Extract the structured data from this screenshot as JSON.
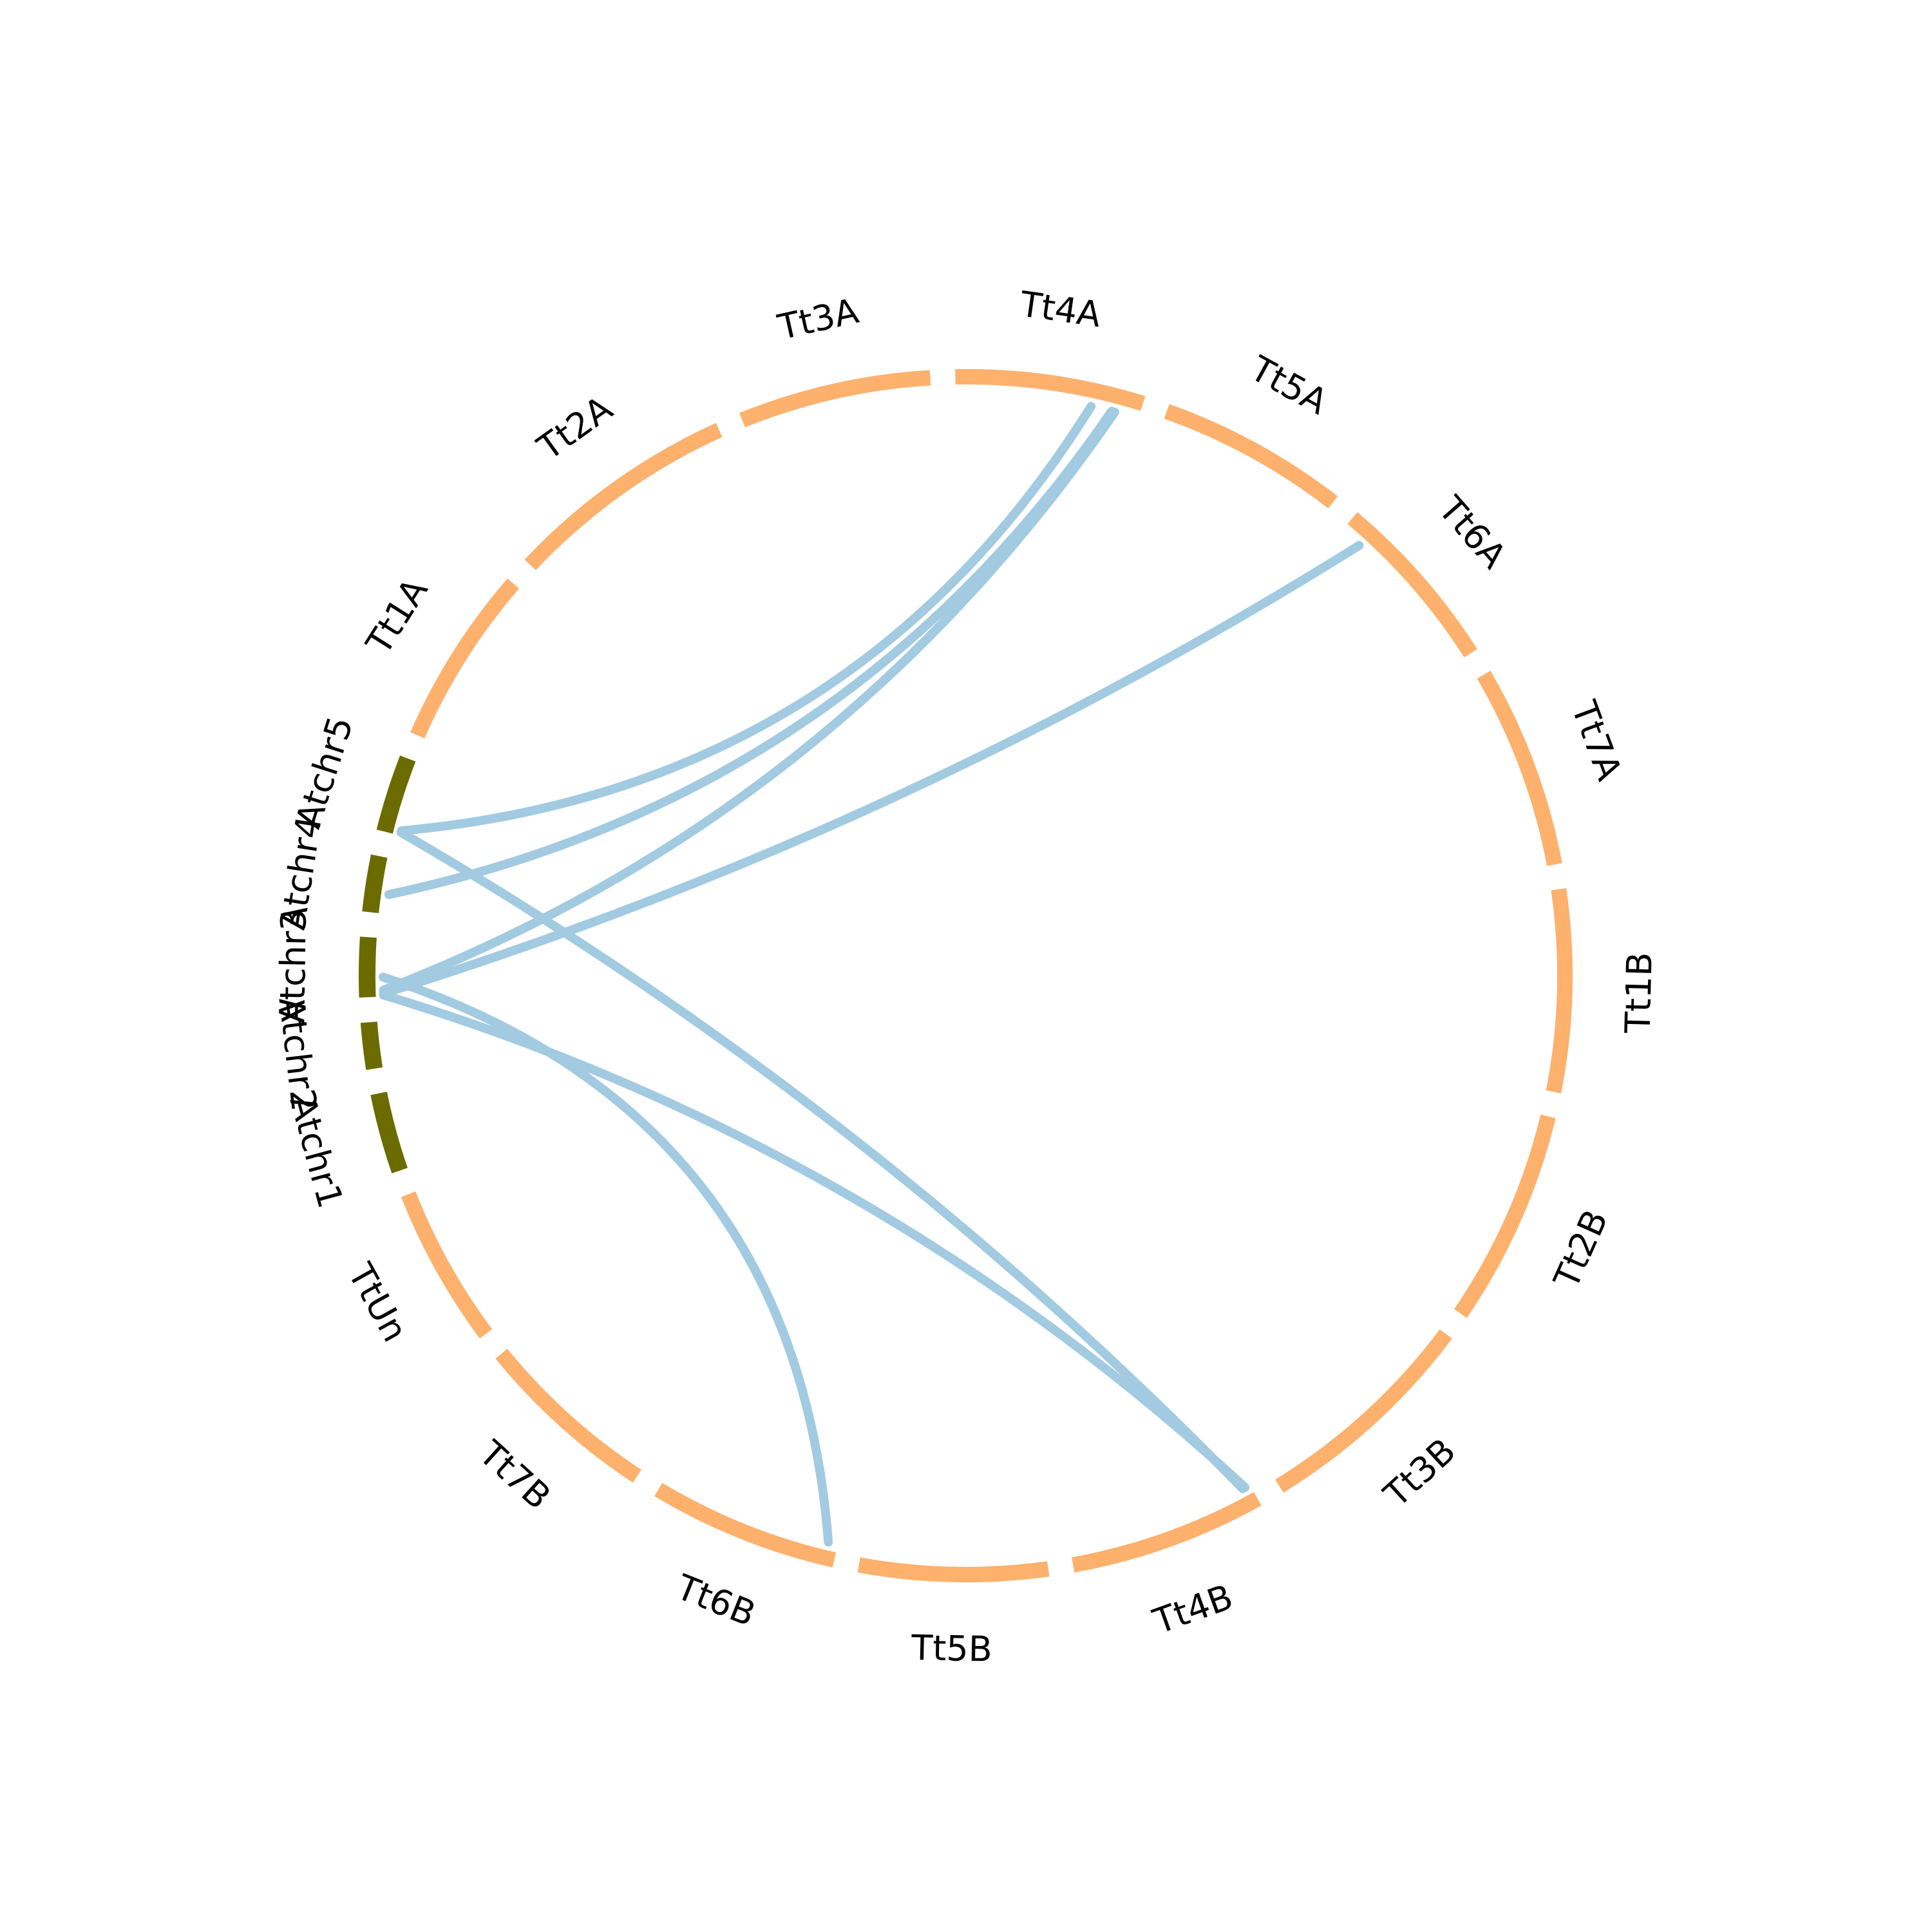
{
  "colors": {
    "background": "#ffffff",
    "arabidopsis_segment": "#6b6b00",
    "wheat_segment": "#fdb16d",
    "link": "#a2cbe2",
    "label": "#000000"
  },
  "chromosomes": [
    {
      "label": "Atchr1",
      "group": "arabidopsis",
      "start": 0,
      "end": 24
    },
    {
      "label": "Atchr2",
      "group": "arabidopsis",
      "start": 24,
      "end": 38
    },
    {
      "label": "Atchr3",
      "group": "arabidopsis",
      "start": 38,
      "end": 56
    },
    {
      "label": "Atchr4",
      "group": "arabidopsis",
      "start": 56,
      "end": 73
    },
    {
      "label": "Atchr5",
      "group": "arabidopsis",
      "start": 73,
      "end": 96
    },
    {
      "label": "Tt1A",
      "group": "wheat",
      "start": 96,
      "end": 150
    },
    {
      "label": "Tt2A",
      "group": "wheat",
      "start": 150,
      "end": 220
    },
    {
      "label": "Tt3A",
      "group": "wheat",
      "start": 220,
      "end": 278
    },
    {
      "label": "Tt4A",
      "group": "wheat",
      "start": 278,
      "end": 335
    },
    {
      "label": "Tt5A",
      "group": "wheat",
      "start": 335,
      "end": 392
    },
    {
      "label": "Tt6A",
      "group": "wheat",
      "start": 392,
      "end": 446
    },
    {
      "label": "Tt7A",
      "group": "wheat",
      "start": 446,
      "end": 507
    },
    {
      "label": "Tt1B",
      "group": "wheat",
      "start": 507,
      "end": 568
    },
    {
      "label": "Tt2B",
      "group": "wheat",
      "start": 568,
      "end": 633
    },
    {
      "label": "Tt3B",
      "group": "wheat",
      "start": 633,
      "end": 701
    },
    {
      "label": "Tt4B",
      "group": "wheat",
      "start": 701,
      "end": 760
    },
    {
      "label": "Tt5B",
      "group": "wheat",
      "start": 760,
      "end": 817
    },
    {
      "label": "Tt6B",
      "group": "wheat",
      "start": 817,
      "end": 874
    },
    {
      "label": "Tt7B",
      "group": "wheat",
      "start": 874,
      "end": 929
    },
    {
      "label": "TtUn",
      "group": "wheat",
      "start": 929,
      "end": 977
    }
  ],
  "links": [
    {
      "from": "Atchr3",
      "from_pos": 39.0,
      "to": "Tt6A",
      "to_pos": 399.0
    },
    {
      "from": "Atchr3",
      "from_pos": 40.0,
      "to": "Tt4A",
      "to_pos": 327.5
    },
    {
      "from": "Atchr3",
      "from_pos": 38.5,
      "to": "Tt4B",
      "to_pos": 702.7
    },
    {
      "from": "Atchr3",
      "from_pos": 44.0,
      "to": "Tt6B",
      "to_pos": 820.0
    },
    {
      "from": "Atchr4",
      "from_pos": 62.0,
      "to": "Tt4A",
      "to_pos": 326.5
    },
    {
      "from": "Atchr5",
      "from_pos": 74.5,
      "to": "Tt4A",
      "to_pos": 320.0
    },
    {
      "from": "Atchr5",
      "from_pos": 74.0,
      "to": "Tt4B",
      "to_pos": 703.5
    }
  ]
}
